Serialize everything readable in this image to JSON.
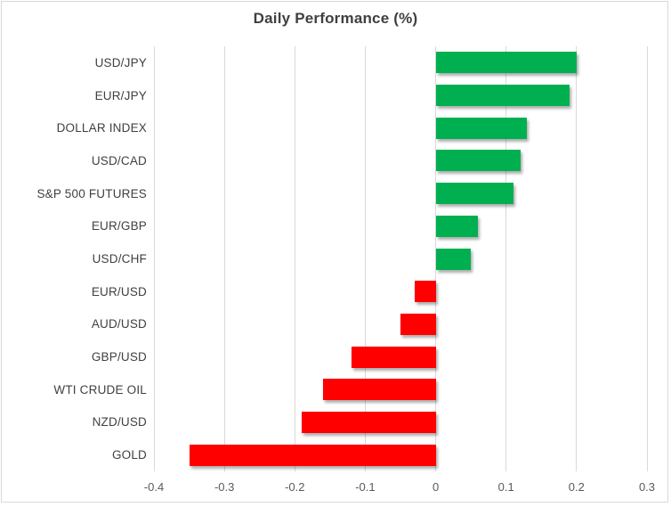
{
  "chart_data": {
    "type": "bar",
    "orientation": "horizontal",
    "title": "Daily Performance (%)",
    "categories": [
      "USD/JPY",
      "EUR/JPY",
      "DOLLAR INDEX",
      "USD/CAD",
      "S&P 500 FUTURES",
      "EUR/GBP",
      "USD/CHF",
      "EUR/USD",
      "AUD/USD",
      "GBP/USD",
      "WTI CRUDE OIL",
      "NZD/USD",
      "GOLD"
    ],
    "values": [
      0.2,
      0.19,
      0.13,
      0.12,
      0.11,
      0.06,
      0.05,
      -0.03,
      -0.05,
      -0.12,
      -0.16,
      -0.19,
      -0.35
    ],
    "xlim": [
      -0.4,
      0.3
    ],
    "x_ticks": [
      {
        "value": -0.4,
        "label": "-0.4"
      },
      {
        "value": -0.3,
        "label": "-0.3"
      },
      {
        "value": -0.2,
        "label": "-0.2"
      },
      {
        "value": -0.1,
        "label": "-0.1"
      },
      {
        "value": 0,
        "label": "0"
      },
      {
        "value": 0.1,
        "label": "0.1"
      },
      {
        "value": 0.2,
        "label": "0.2"
      },
      {
        "value": 0.3,
        "label": "0.3"
      }
    ],
    "grid": true,
    "legend": "none",
    "colors": {
      "positive": "#00B050",
      "negative": "#FF0000",
      "gridline": "#D9D9D9",
      "frame_border": "#D9D9D9",
      "title_text": "#404040",
      "category_text": "#404040",
      "tick_text": "#595959"
    }
  }
}
